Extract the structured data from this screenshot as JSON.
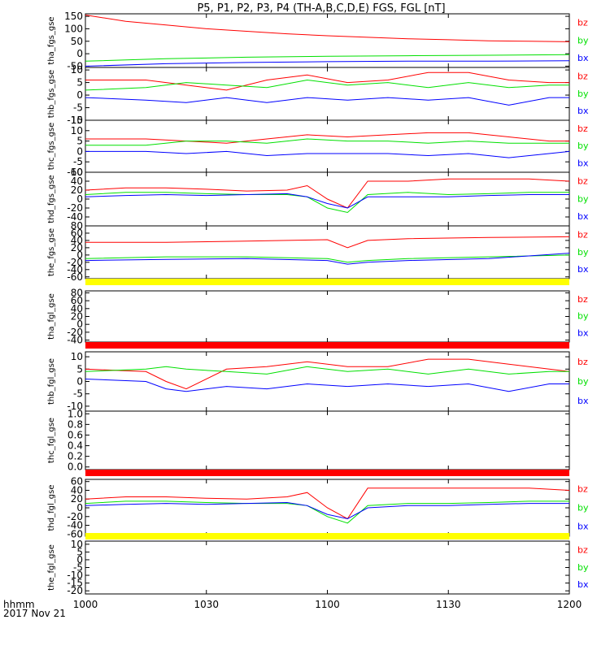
{
  "title": "P5, P1, P2, P3, P4 (TH-A,B,C,D,E) FGS, FGL [nT]",
  "colors": {
    "bz": "#ff0000",
    "by": "#00e000",
    "bx": "#0000ff",
    "yellow": "#ffff00",
    "red": "#ff0000"
  },
  "footer": {
    "format": "hhmm",
    "date": "2017 Nov 21"
  },
  "x_ticks": [
    {
      "label": "1000",
      "t": 0
    },
    {
      "label": "1030",
      "t": 30
    },
    {
      "label": "1100",
      "t": 60
    },
    {
      "label": "1130",
      "t": 90
    },
    {
      "label": "1200",
      "t": 120
    }
  ],
  "chart_data": [
    {
      "type": "line",
      "panel": "tha_fgs_gse",
      "ylabel": "tha_fgs_gse",
      "ylim": [
        -55,
        160
      ],
      "yticks": [
        150,
        100,
        50,
        0,
        -50
      ],
      "legend": [
        "bz",
        "by",
        "bx"
      ],
      "series": [
        {
          "name": "bz",
          "x": [
            0,
            10,
            20,
            30,
            40,
            50,
            60,
            70,
            80,
            90,
            100,
            110,
            120
          ],
          "values": [
            155,
            130,
            115,
            100,
            90,
            80,
            72,
            66,
            60,
            56,
            52,
            50,
            48
          ]
        },
        {
          "name": "by",
          "x": [
            0,
            20,
            40,
            60,
            80,
            100,
            120
          ],
          "values": [
            -30,
            -20,
            -14,
            -10,
            -8,
            -6,
            -4
          ]
        },
        {
          "name": "bx",
          "x": [
            0,
            20,
            40,
            60,
            80,
            100,
            120
          ],
          "values": [
            -50,
            -40,
            -35,
            -32,
            -30,
            -30,
            -28
          ]
        }
      ]
    },
    {
      "type": "line",
      "panel": "thb_fgs_gse",
      "ylabel": "thb_fgs_gse",
      "ylim": [
        -10,
        11
      ],
      "yticks": [
        10,
        5,
        0,
        -5,
        -10
      ],
      "legend": [
        "bz",
        "by",
        "bx"
      ],
      "series": [
        {
          "name": "bz",
          "x": [
            0,
            15,
            25,
            35,
            45,
            55,
            65,
            75,
            85,
            95,
            105,
            115,
            120
          ],
          "values": [
            6,
            6,
            4,
            2,
            6,
            8,
            5,
            6,
            9,
            9,
            6,
            5,
            5
          ]
        },
        {
          "name": "by",
          "x": [
            0,
            15,
            25,
            35,
            45,
            55,
            65,
            75,
            85,
            95,
            105,
            115,
            120
          ],
          "values": [
            2,
            3,
            5,
            4,
            3,
            6,
            4,
            5,
            3,
            5,
            3,
            4,
            4
          ]
        },
        {
          "name": "bx",
          "x": [
            0,
            15,
            25,
            35,
            45,
            55,
            65,
            75,
            85,
            95,
            105,
            115,
            120
          ],
          "values": [
            -1,
            -2,
            -3,
            -1,
            -3,
            -1,
            -2,
            -1,
            -2,
            -1,
            -4,
            -1,
            -1
          ]
        }
      ]
    },
    {
      "type": "line",
      "panel": "thc_fgs_gse",
      "ylabel": "thc_fgs_gse",
      "ylim": [
        -10,
        15
      ],
      "yticks": [
        15,
        10,
        5,
        0,
        -5,
        -10
      ],
      "legend": [
        "bz",
        "by",
        "bx"
      ],
      "series": [
        {
          "name": "bz",
          "x": [
            0,
            15,
            25,
            35,
            45,
            55,
            65,
            75,
            85,
            95,
            105,
            115,
            120
          ],
          "values": [
            6,
            6,
            5,
            4,
            6,
            8,
            7,
            8,
            9,
            9,
            7,
            5,
            5
          ]
        },
        {
          "name": "by",
          "x": [
            0,
            15,
            25,
            35,
            45,
            55,
            65,
            75,
            85,
            95,
            105,
            115,
            120
          ],
          "values": [
            3,
            3,
            5,
            5,
            4,
            6,
            5,
            5,
            4,
            5,
            4,
            4,
            4
          ]
        },
        {
          "name": "bx",
          "x": [
            0,
            15,
            25,
            35,
            45,
            55,
            65,
            75,
            85,
            95,
            105,
            115,
            120
          ],
          "values": [
            0,
            0,
            -1,
            0,
            -2,
            -1,
            -1,
            -1,
            -2,
            -1,
            -3,
            -1,
            0
          ]
        }
      ]
    },
    {
      "type": "line",
      "panel": "thd_fgs_gse",
      "ylabel": "thd_fgs_gse",
      "ylim": [
        -60,
        60
      ],
      "yticks": [
        60,
        40,
        20,
        0,
        -20,
        -40
      ],
      "legend": [
        "bz",
        "by",
        "bx"
      ],
      "series": [
        {
          "name": "bz",
          "x": [
            0,
            10,
            20,
            30,
            40,
            50,
            55,
            60,
            65,
            70,
            80,
            90,
            100,
            110,
            120
          ],
          "values": [
            20,
            25,
            25,
            22,
            18,
            20,
            30,
            0,
            -20,
            40,
            40,
            45,
            45,
            45,
            40
          ]
        },
        {
          "name": "by",
          "x": [
            0,
            10,
            20,
            30,
            40,
            50,
            55,
            60,
            65,
            70,
            80,
            90,
            100,
            110,
            120
          ],
          "values": [
            10,
            15,
            15,
            12,
            10,
            10,
            5,
            -20,
            -30,
            10,
            15,
            10,
            12,
            15,
            15
          ]
        },
        {
          "name": "bx",
          "x": [
            0,
            10,
            20,
            30,
            40,
            50,
            55,
            60,
            65,
            70,
            80,
            90,
            100,
            110,
            120
          ],
          "values": [
            5,
            8,
            10,
            8,
            10,
            12,
            5,
            -10,
            -20,
            5,
            5,
            5,
            8,
            10,
            10
          ]
        }
      ]
    },
    {
      "type": "line",
      "panel": "the_fgs_gse",
      "ylabel": "the_fgs_gse",
      "ylim": [
        -65,
        80
      ],
      "yticks": [
        80,
        60,
        40,
        20,
        0,
        -20,
        -40,
        -60
      ],
      "legend": [
        "bz",
        "by",
        "bx"
      ],
      "series": [
        {
          "name": "bz",
          "x": [
            0,
            20,
            40,
            60,
            65,
            70,
            80,
            100,
            120
          ],
          "values": [
            35,
            35,
            38,
            42,
            20,
            40,
            45,
            48,
            50
          ]
        },
        {
          "name": "by",
          "x": [
            0,
            20,
            40,
            60,
            65,
            70,
            80,
            100,
            120
          ],
          "values": [
            -10,
            -5,
            -5,
            -10,
            -20,
            -15,
            -10,
            -5,
            0
          ]
        },
        {
          "name": "bx",
          "x": [
            0,
            20,
            40,
            60,
            65,
            70,
            80,
            100,
            120
          ],
          "values": [
            -15,
            -12,
            -10,
            -15,
            -25,
            -20,
            -15,
            -10,
            5
          ]
        }
      ]
    },
    {
      "type": "line",
      "panel": "tha_fgl_gse",
      "ylabel": "tha_fgl_gse",
      "ylim": [
        -45,
        85
      ],
      "yticks": [
        80,
        60,
        40,
        20,
        0,
        -20,
        -40
      ],
      "legend": [
        "bz",
        "by",
        "bx"
      ],
      "series": []
    },
    {
      "type": "line",
      "panel": "thb_fgl_gse",
      "ylabel": "thb_fgl_gse",
      "ylim": [
        -12,
        12
      ],
      "yticks": [
        10,
        5,
        0,
        -5,
        -10
      ],
      "legend": [
        "bz",
        "by",
        "bx"
      ],
      "series": [
        {
          "name": "bz",
          "x": [
            0,
            15,
            20,
            25,
            35,
            45,
            55,
            65,
            75,
            85,
            95,
            105,
            115,
            120
          ],
          "values": [
            5,
            4,
            0,
            -3,
            5,
            6,
            8,
            6,
            6,
            9,
            9,
            7,
            5,
            4
          ]
        },
        {
          "name": "by",
          "x": [
            0,
            15,
            20,
            25,
            35,
            45,
            55,
            65,
            75,
            85,
            95,
            105,
            115,
            120
          ],
          "values": [
            4,
            5,
            6,
            5,
            4,
            3,
            6,
            4,
            5,
            3,
            5,
            3,
            4,
            4
          ]
        },
        {
          "name": "bx",
          "x": [
            0,
            15,
            20,
            25,
            35,
            45,
            55,
            65,
            75,
            85,
            95,
            105,
            115,
            120
          ],
          "values": [
            1,
            0,
            -3,
            -4,
            -2,
            -3,
            -1,
            -2,
            -1,
            -2,
            -1,
            -4,
            -1,
            -1
          ]
        }
      ]
    },
    {
      "type": "line",
      "panel": "thc_fgl_gse",
      "ylabel": "thc_fgl_gse",
      "ylim": [
        -0.05,
        1.05
      ],
      "yticks": [
        1.0,
        0.8,
        0.6,
        0.4,
        0.2,
        0.0
      ],
      "legend": [],
      "series": []
    },
    {
      "type": "line",
      "panel": "thd_fgl_gse",
      "ylabel": "thd_fgl_gse",
      "ylim": [
        -65,
        65
      ],
      "yticks": [
        60,
        40,
        20,
        0,
        -20,
        -40,
        -60
      ],
      "legend": [
        "bz",
        "by",
        "bx"
      ],
      "series": [
        {
          "name": "bz",
          "x": [
            0,
            10,
            20,
            30,
            40,
            50,
            55,
            60,
            65,
            70,
            80,
            90,
            100,
            110,
            120
          ],
          "values": [
            20,
            25,
            25,
            22,
            20,
            25,
            35,
            0,
            -25,
            45,
            45,
            45,
            45,
            45,
            40
          ]
        },
        {
          "name": "by",
          "x": [
            0,
            10,
            20,
            30,
            40,
            50,
            55,
            60,
            65,
            70,
            80,
            90,
            100,
            110,
            120
          ],
          "values": [
            10,
            15,
            15,
            12,
            10,
            10,
            5,
            -20,
            -35,
            5,
            10,
            10,
            12,
            15,
            15
          ]
        },
        {
          "name": "bx",
          "x": [
            0,
            10,
            20,
            30,
            40,
            50,
            55,
            60,
            65,
            70,
            80,
            90,
            100,
            110,
            120
          ],
          "values": [
            5,
            8,
            10,
            8,
            10,
            12,
            5,
            -15,
            -25,
            0,
            5,
            5,
            8,
            10,
            10
          ]
        }
      ]
    },
    {
      "type": "line",
      "panel": "the_fgl_gse",
      "ylabel": "the_fgl_gse",
      "ylim": [
        -22,
        12
      ],
      "yticks": [
        10,
        5,
        0,
        -5,
        -10,
        -15,
        -20
      ],
      "legend": [
        "bz",
        "by",
        "bx"
      ],
      "series": []
    }
  ]
}
